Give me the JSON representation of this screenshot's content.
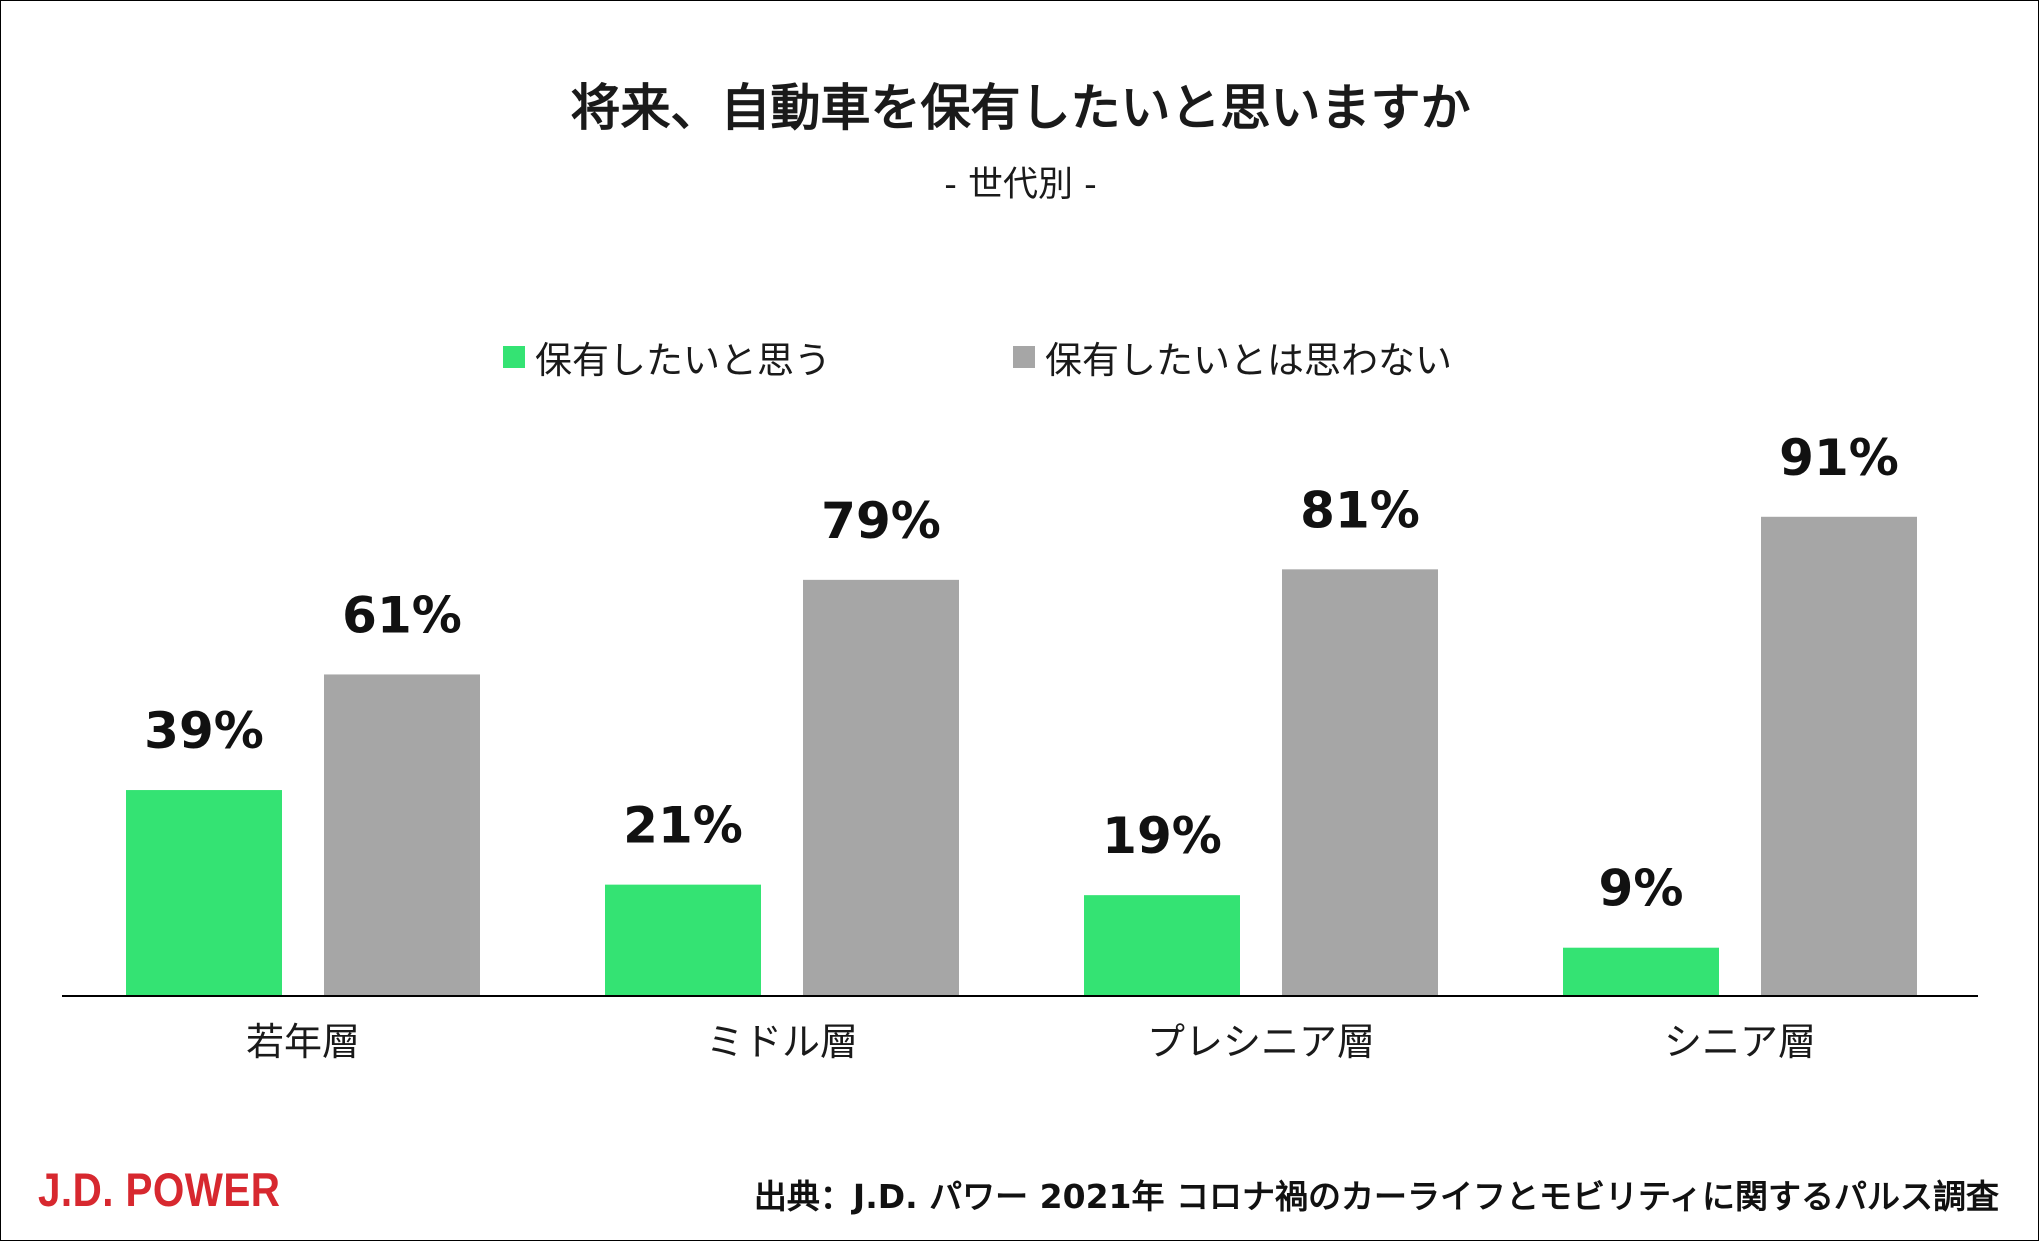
{
  "chart_data": {
    "type": "bar",
    "title": "将来、自動車を保有したいと思いますか",
    "subtitle": "- 世代別 -",
    "categories": [
      "若年層",
      "ミドル層",
      "プレシニア層",
      "シニア層"
    ],
    "series": [
      {
        "name": "保有したいと思う",
        "values": [
          39,
          21,
          19,
          9
        ],
        "labels": [
          "39%",
          "21%",
          "19%",
          "9%"
        ],
        "color": "#34E373"
      },
      {
        "name": "保有したいとは思わない",
        "values": [
          61,
          79,
          81,
          91
        ],
        "labels": [
          "61%",
          "79%",
          "81%",
          "91%"
        ],
        "color": "#A6A6A6"
      }
    ],
    "ylim": [
      0,
      100
    ],
    "grid": false,
    "legend_position": "top-center",
    "xlabel": "",
    "ylabel": ""
  },
  "footer": {
    "source": "出典：J.D. パワー 2021年 コロナ禍のカーライフとモビリティに関するパルス調査",
    "logo_text": "J.D. POWER",
    "logo_color": "#D7282F"
  }
}
